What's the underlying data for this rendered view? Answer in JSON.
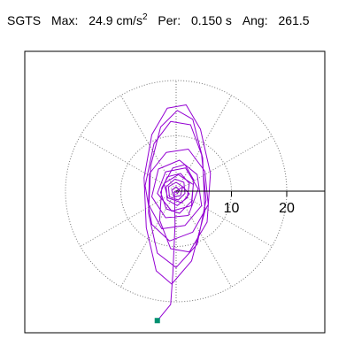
{
  "header": {
    "station": "SGTS",
    "max_label": "Max:",
    "max_value": "24.9 cm/s",
    "max_exponent": "2",
    "per_label": "Per:",
    "per_value": "0.150 s",
    "ang_label": "Ang:",
    "ang_value": "261.5"
  },
  "colors": {
    "trace": "#9400d3",
    "endpoint": "#009070",
    "rings": "#777777",
    "axis": "#000000",
    "frame": "#000000"
  },
  "chart_data": {
    "type": "scatter",
    "title": "SGTS   Max:   24.9 cm/s2   Per:  0.150 s   Ang: 261.5",
    "xlabel": "",
    "ylabel": "",
    "xlim": [
      -24,
      27
    ],
    "ylim": [
      -24,
      24
    ],
    "grid": true,
    "grid_type": "polar rings (dotted)",
    "ring_ticks": [
      10,
      20
    ],
    "ring_tick_labels": [
      "10",
      "20"
    ],
    "radial_spokes_deg": [
      30,
      60,
      90,
      120,
      150,
      210,
      240,
      270,
      300,
      330
    ],
    "series": [
      {
        "points": [
          [
            0,
            0
          ],
          [
            1.2,
            0.8
          ],
          [
            2.4,
            -0.5
          ],
          [
            1.0,
            -2.1
          ],
          [
            -1.5,
            -1.2
          ],
          [
            -2.2,
            1.4
          ],
          [
            0.4,
            3.0
          ],
          [
            3.1,
            1.2
          ],
          [
            2.8,
            -2.6
          ],
          [
            -0.8,
            -3.6
          ],
          [
            -3.4,
            -0.4
          ],
          [
            -1.9,
            3.5
          ],
          [
            1.7,
            4.2
          ],
          [
            4.0,
            0.4
          ],
          [
            2.2,
            -4.4
          ],
          [
            -1.9,
            -4.8
          ],
          [
            -4.4,
            -1.0
          ],
          [
            -3.2,
            4.0
          ],
          [
            0.6,
            5.6
          ],
          [
            3.8,
            3.0
          ],
          [
            4.6,
            -2.6
          ],
          [
            1.6,
            -6.2
          ],
          [
            -2.6,
            -6.8
          ],
          [
            -5.0,
            -2.4
          ],
          [
            -4.8,
            3.2
          ],
          [
            -1.8,
            7.0
          ],
          [
            2.2,
            7.6
          ],
          [
            5.2,
            3.6
          ],
          [
            5.8,
            -2.4
          ],
          [
            3.0,
            -7.4
          ],
          [
            -1.2,
            -9.0
          ],
          [
            -4.4,
            -6.0
          ],
          [
            -5.6,
            1.0
          ],
          [
            -4.0,
            8.6
          ],
          [
            -1.0,
            12.6
          ],
          [
            2.6,
            12.0
          ],
          [
            4.6,
            6.6
          ],
          [
            5.4,
            -1.6
          ],
          [
            3.8,
            -9.6
          ],
          [
            0.0,
            -13.8
          ],
          [
            -3.4,
            -11.2
          ],
          [
            -5.0,
            -4.0
          ],
          [
            -4.6,
            4.6
          ],
          [
            -2.8,
            11.6
          ],
          [
            0.2,
            14.6
          ],
          [
            3.0,
            13.0
          ],
          [
            4.8,
            6.0
          ],
          [
            5.2,
            -3.6
          ],
          [
            2.8,
            -12.6
          ],
          [
            -0.8,
            -16.8
          ],
          [
            -3.6,
            -14.4
          ],
          [
            -5.4,
            -6.6
          ],
          [
            -5.8,
            2.4
          ],
          [
            -4.4,
            10.2
          ],
          [
            -1.6,
            15.0
          ],
          [
            1.8,
            15.6
          ],
          [
            4.4,
            11.2
          ],
          [
            6.2,
            3.2
          ],
          [
            5.6,
            -5.6
          ],
          [
            2.4,
            -11.0
          ],
          [
            -1.0,
            -10.4
          ],
          [
            -3.0,
            -5.2
          ],
          [
            -2.6,
            0.6
          ],
          [
            -0.6,
            4.2
          ],
          [
            1.6,
            4.8
          ],
          [
            3.2,
            2.0
          ],
          [
            2.8,
            -1.8
          ],
          [
            0.6,
            -4.0
          ],
          [
            -1.8,
            -3.2
          ],
          [
            -2.8,
            -0.2
          ],
          [
            -1.6,
            2.6
          ],
          [
            0.8,
            3.2
          ],
          [
            2.4,
            1.4
          ],
          [
            2.0,
            -1.2
          ],
          [
            0.2,
            -2.6
          ],
          [
            -1.6,
            -1.6
          ],
          [
            -1.8,
            0.8
          ],
          [
            -0.2,
            2.2
          ],
          [
            1.4,
            1.6
          ],
          [
            1.6,
            -0.4
          ],
          [
            0.4,
            -1.6
          ],
          [
            -1.2,
            -1.0
          ],
          [
            -1.4,
            0.8
          ],
          [
            0.0,
            1.6
          ],
          [
            1.2,
            0.8
          ],
          [
            0.8,
            -0.8
          ],
          [
            -0.4,
            -1.0
          ],
          [
            -0.8,
            0.2
          ],
          [
            0.0,
            0.8
          ],
          [
            0.6,
            0.2
          ],
          [
            0.2,
            -0.4
          ],
          [
            -0.3,
            0.0
          ],
          [
            -0.2,
            -6.0
          ],
          [
            -0.6,
            -15.0
          ],
          [
            -1.0,
            -20.5
          ],
          [
            -3.4,
            -23.4
          ]
        ]
      }
    ],
    "endpoint": [
      -3.4,
      -23.4
    ]
  }
}
